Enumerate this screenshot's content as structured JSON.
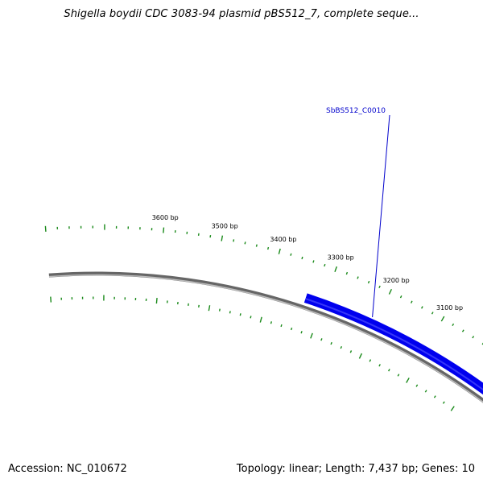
{
  "title": "Shigella boydii CDC 3083-94 plasmid pBS512_7, complete seque...",
  "footer": {
    "accession": "Accession: NC_010672",
    "summary": "Topology: linear; Length: 7,437 bp; Genes: 10"
  },
  "colors": {
    "backbone": "#808080",
    "gene": "#0000ee",
    "ticks": "#1a8a1a",
    "label_line": "#0000cc"
  },
  "scale": {
    "ticks_major": [
      3100,
      3200,
      3300,
      3400,
      3500,
      3600
    ],
    "tick_labels": [
      "3100 bp",
      "3200 bp",
      "3300 bp",
      "3400 bp",
      "3500 bp",
      "3600 bp"
    ]
  },
  "features": [
    {
      "name": "SbBS512_C0010",
      "color": "#0000ee",
      "strand": "forward"
    }
  ]
}
